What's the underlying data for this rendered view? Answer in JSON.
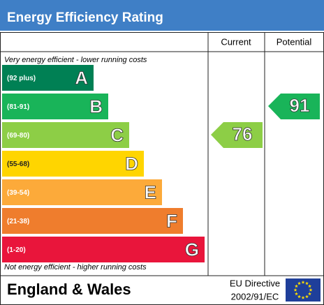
{
  "header": {
    "title": "Energy Efficiency Rating"
  },
  "columns": [
    "Current",
    "Potential"
  ],
  "top_note": "Very energy efficient - lower running costs",
  "bands": [
    {
      "range": "(92 plus)",
      "letter": "A",
      "color": "#008054"
    },
    {
      "range": "(81-91)",
      "letter": "B",
      "color": "#19b459"
    },
    {
      "range": "(69-80)",
      "letter": "C",
      "color": "#8dce46"
    },
    {
      "range": "(55-68)",
      "letter": "D",
      "color": "#ffd500"
    },
    {
      "range": "(39-54)",
      "letter": "E",
      "color": "#fcaa3a"
    },
    {
      "range": "(21-38)",
      "letter": "F",
      "color": "#ef7d2d"
    },
    {
      "range": "(1-20)",
      "letter": "G",
      "color": "#e9153b"
    }
  ],
  "bottom_note": "Not energy efficient - higher running costs",
  "current": 76,
  "potential": 91,
  "footer": {
    "region": "England & Wales",
    "directive_line1": "EU Directive",
    "directive_line2": "2002/91/EC"
  }
}
